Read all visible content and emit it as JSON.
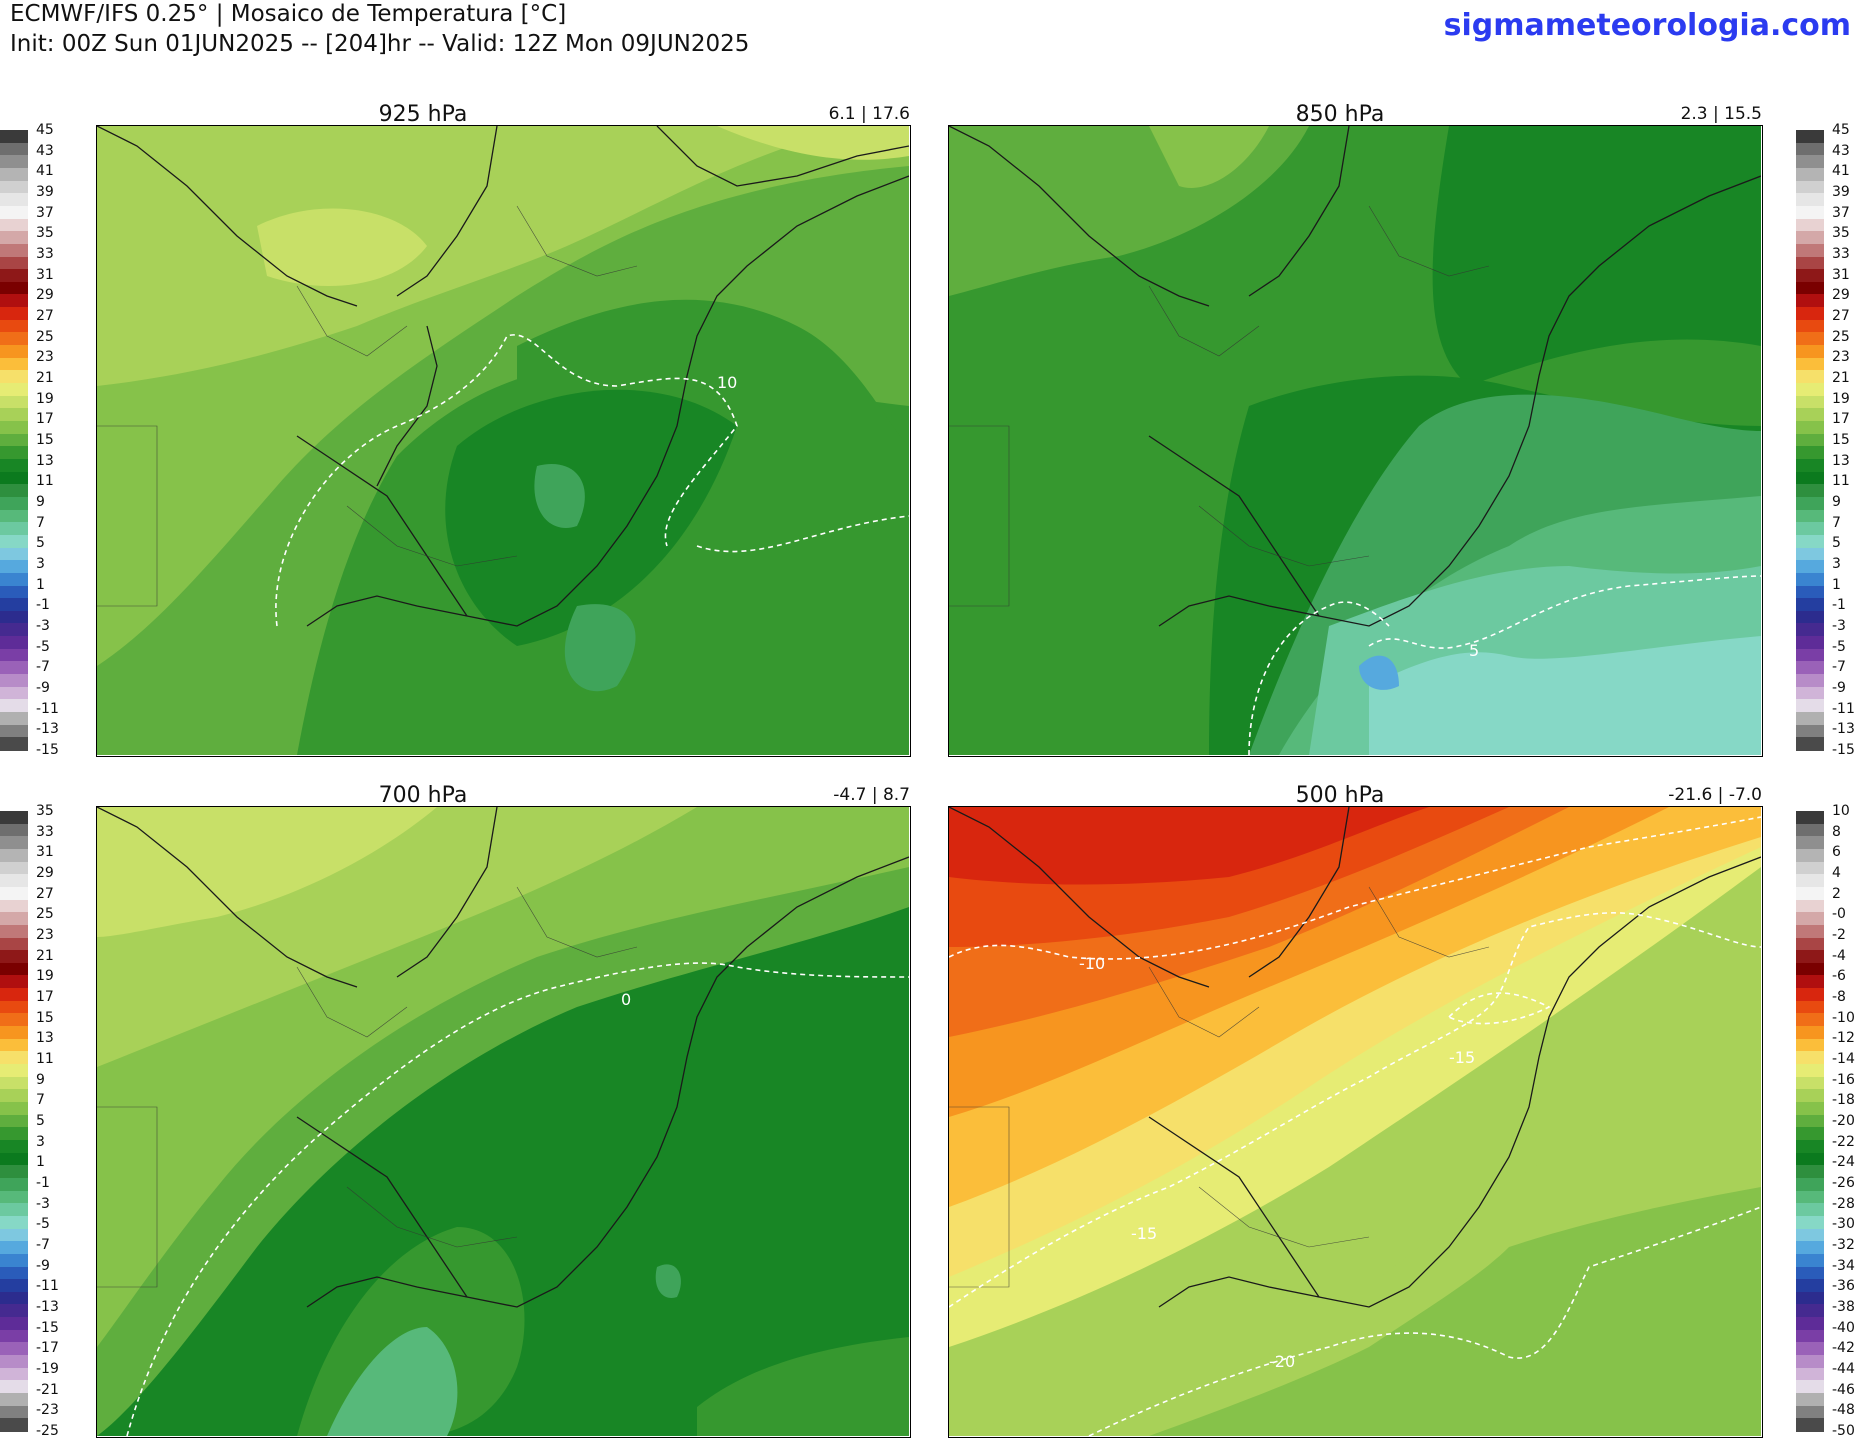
{
  "header": {
    "line1": "ECMWF/IFS 0.25° | Mosaico de Temperatura [°C]",
    "line2": "Init: 00Z Sun 01JUN2025 -- [204]hr -- Valid: 12Z Mon 09JUN2025",
    "site": "sigmameteorologia.com"
  },
  "panels": [
    {
      "level": "925 hPa",
      "range": "6.1 | 17.6",
      "contour_labels": [
        "10"
      ]
    },
    {
      "level": "850 hPa",
      "range": "2.3 | 15.5",
      "contour_labels": [
        "5"
      ]
    },
    {
      "level": "700 hPa",
      "range": "-4.7 | 8.7",
      "contour_labels": [
        "0"
      ]
    },
    {
      "level": "500 hPa",
      "range": "-21.6 | -7.0",
      "contour_labels": [
        "-10",
        "-15",
        "-15",
        "-20"
      ]
    }
  ],
  "colorbars": {
    "top": [
      "45",
      "43",
      "41",
      "39",
      "37",
      "35",
      "33",
      "31",
      "29",
      "27",
      "25",
      "23",
      "21",
      "19",
      "17",
      "15",
      "13",
      "11",
      "9",
      "7",
      "5",
      "3",
      "1",
      "-1",
      "-3",
      "-5",
      "-7",
      "-9",
      "-11",
      "-13",
      "-15"
    ],
    "bottom_left": [
      "35",
      "33",
      "31",
      "29",
      "27",
      "25",
      "23",
      "21",
      "19",
      "17",
      "15",
      "13",
      "11",
      "9",
      "7",
      "5",
      "3",
      "1",
      "-1",
      "-3",
      "-5",
      "-7",
      "-9",
      "-11",
      "-13",
      "-15",
      "-17",
      "-19",
      "-21",
      "-23",
      "-25"
    ],
    "bottom_right": [
      "10",
      "8",
      "6",
      "4",
      "2",
      "-0",
      "-2",
      "-4",
      "-6",
      "-8",
      "-10",
      "-12",
      "-14",
      "-16",
      "-18",
      "-20",
      "-22",
      "-24",
      "-26",
      "-28",
      "-30",
      "-32",
      "-34",
      "-36",
      "-38",
      "-40",
      "-42",
      "-44",
      "-46",
      "-48",
      "-50"
    ]
  },
  "colors": {
    "palette": [
      "#3a3a3a",
      "#6e6e6e",
      "#8f8f8f",
      "#b4b4b4",
      "#d0d0d0",
      "#e6e6e6",
      "#f4f4f4",
      "#e8d2d2",
      "#d4a8a8",
      "#c07878",
      "#a94545",
      "#8e1818",
      "#7a0000",
      "#b00f0f",
      "#d8260e",
      "#e84a10",
      "#f06e18",
      "#f7951f",
      "#fbbe3a",
      "#f6e06a",
      "#e6ec74",
      "#c8e068",
      "#a8d158",
      "#86c24a",
      "#5fae3e",
      "#36982f",
      "#188625",
      "#0b7a1e",
      "#2e8f3e",
      "#3fa45a",
      "#57b97a",
      "#6cc9a0",
      "#86d8c6",
      "#7ec8e0",
      "#56a9de",
      "#3a84d0",
      "#2a5cba",
      "#243ea0",
      "#2c2c8e",
      "#452a90",
      "#5e2c98",
      "#7a3ea6",
      "#9a62b8",
      "#b78cc8",
      "#d0b4d8",
      "#e4dce8",
      "#b0b0b0",
      "#808080",
      "#4a4a4a"
    ],
    "site": "#2b3bf0"
  }
}
